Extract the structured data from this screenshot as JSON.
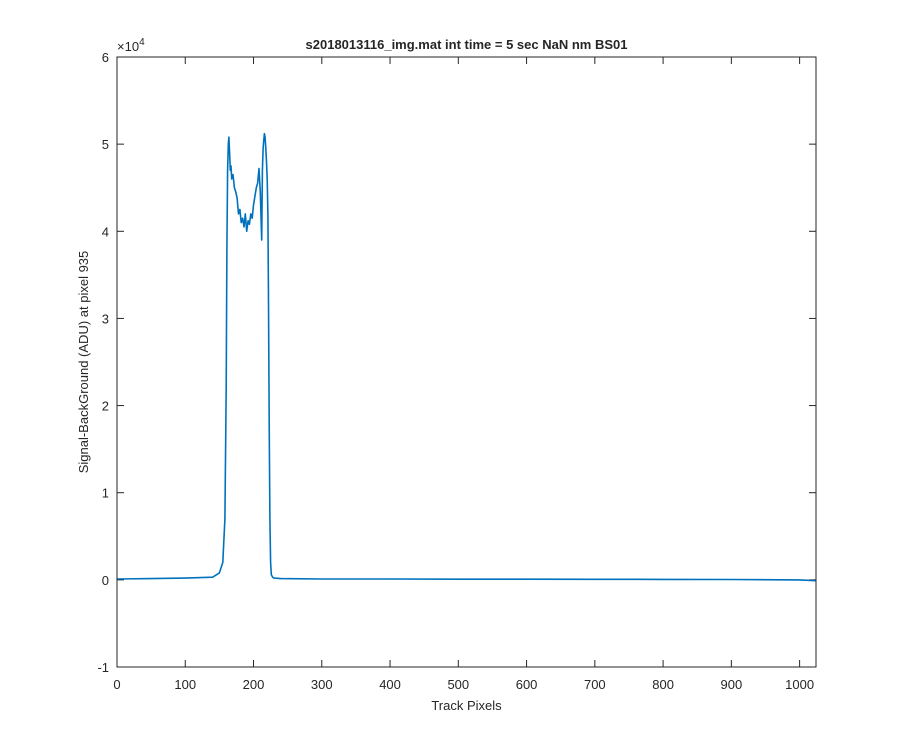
{
  "chart_data": {
    "type": "line",
    "title": "s2018013116_img.mat int time = 5 sec  NaN nm BS01",
    "xlabel": "Track Pixels",
    "ylabel": "Signal-BackGround (ADU) at pixel 935",
    "xlim": [
      0,
      1024
    ],
    "ylim": [
      -1,
      6
    ],
    "y_exponent_label": "×10",
    "y_exponent_power": "4",
    "x_ticks": [
      0,
      100,
      200,
      300,
      400,
      500,
      600,
      700,
      800,
      900,
      1000
    ],
    "x_tick_labels": [
      "0",
      "100",
      "200",
      "300",
      "400",
      "500",
      "600",
      "700",
      "800",
      "900",
      "1000"
    ],
    "y_ticks": [
      -1,
      0,
      1,
      2,
      3,
      4,
      5,
      6
    ],
    "y_tick_labels": [
      "-1",
      "0",
      "1",
      "2",
      "3",
      "4",
      "5",
      "6"
    ],
    "grid": false,
    "box": true,
    "line_color": "#0072BD",
    "axis_color": "#262626",
    "series": [
      {
        "x": [
          0,
          50,
          100,
          140,
          150,
          155,
          158,
          160,
          161,
          162,
          163,
          164,
          165,
          166,
          167,
          168,
          170,
          172,
          174,
          176,
          178,
          180,
          182,
          184,
          186,
          188,
          190,
          192,
          194,
          196,
          198,
          200,
          202,
          204,
          206,
          208,
          210,
          212,
          213,
          214,
          215,
          216,
          217,
          218,
          219,
          220,
          221,
          222,
          223,
          224,
          225,
          226,
          228,
          230,
          240,
          300,
          400,
          500,
          600,
          700,
          800,
          900,
          1000,
          1024
        ],
        "y": [
          0.01,
          0.015,
          0.02,
          0.03,
          0.08,
          0.2,
          0.7,
          2.2,
          3.8,
          4.7,
          5.0,
          5.08,
          4.9,
          4.7,
          4.75,
          4.6,
          4.65,
          4.5,
          4.45,
          4.38,
          4.2,
          4.25,
          4.1,
          4.15,
          4.05,
          4.2,
          4.0,
          4.12,
          4.08,
          4.2,
          4.15,
          4.3,
          4.4,
          4.5,
          4.55,
          4.72,
          4.45,
          3.9,
          4.7,
          4.95,
          5.05,
          5.12,
          5.08,
          4.95,
          4.8,
          4.6,
          4.2,
          3.2,
          1.8,
          0.7,
          0.2,
          0.06,
          0.03,
          0.02,
          0.015,
          0.01,
          0.01,
          0.008,
          0.008,
          0.006,
          0.005,
          0.004,
          0.0,
          -0.01
        ]
      }
    ]
  }
}
